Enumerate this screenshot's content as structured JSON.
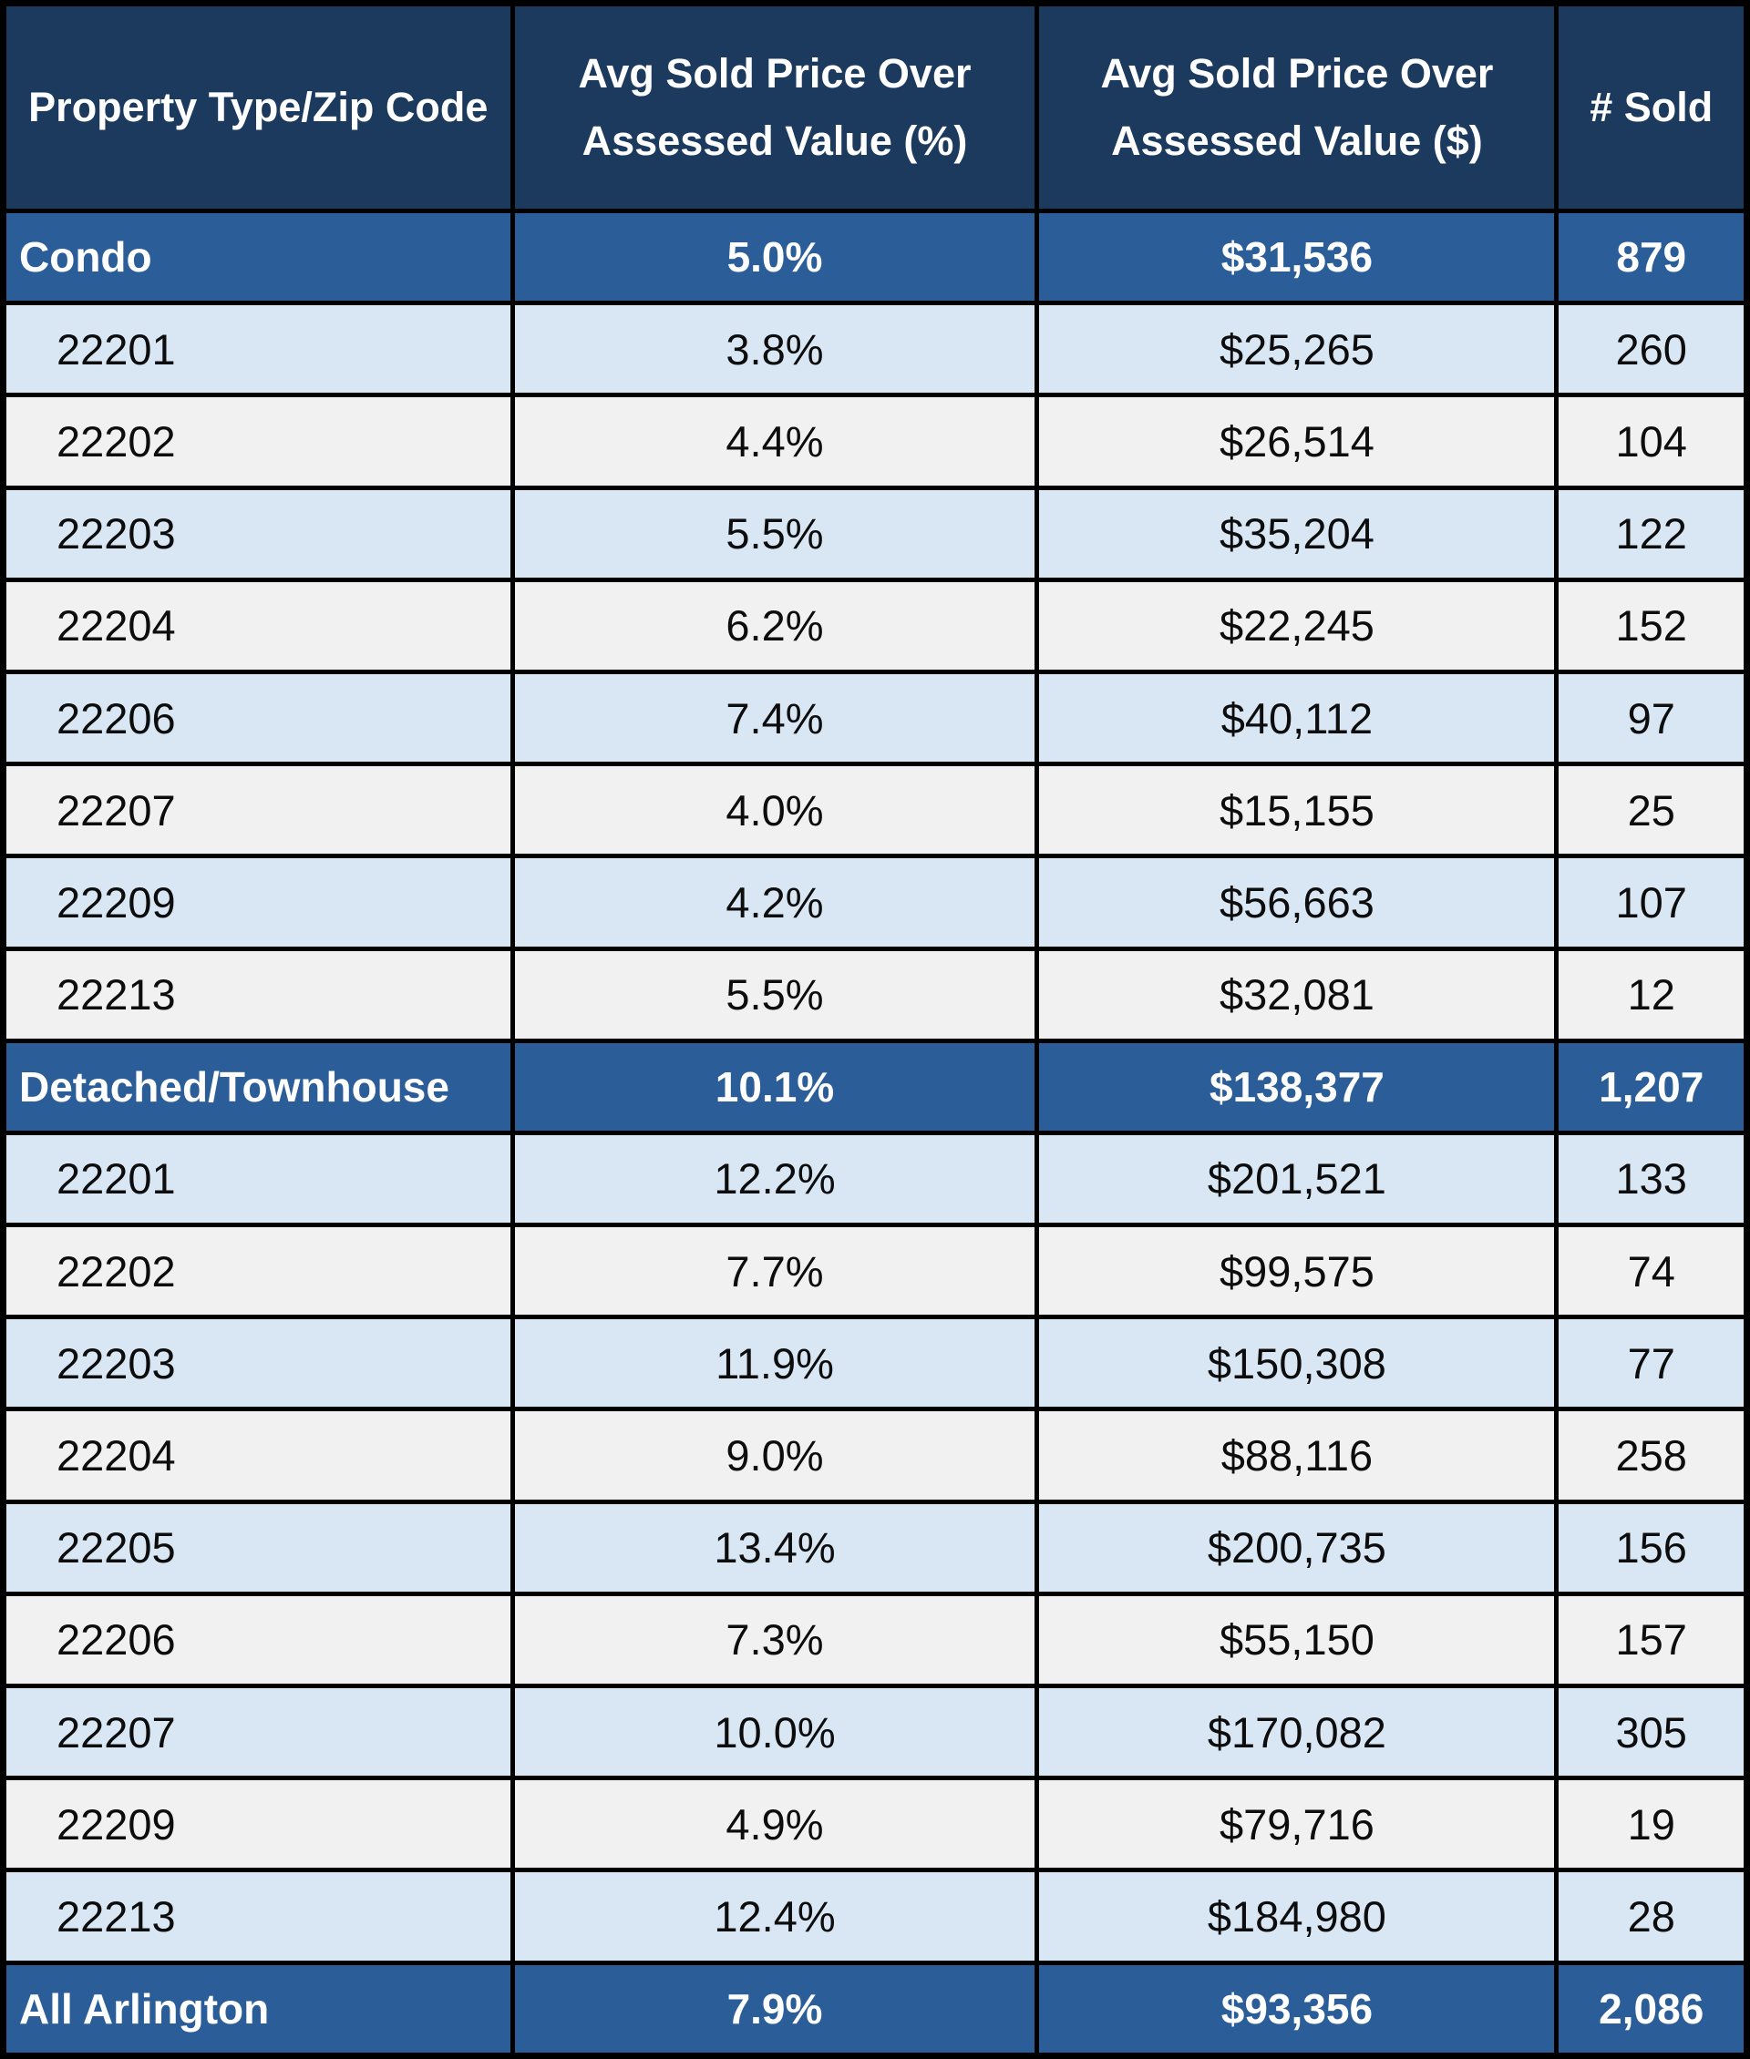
{
  "colors": {
    "header_bg": "#1b3a5e",
    "category_row_bg": "#2b5e99",
    "zip_row_blue": "#d9e7f5",
    "zip_row_gray": "#f1f1f1",
    "border": "#000000",
    "header_text": "#ffffff",
    "body_text": "#0d0d0d"
  },
  "chart_data": {
    "type": "table",
    "columns": [
      "Property Type/Zip Code",
      "Avg Sold Price Over Assessed Value (%)",
      "Avg Sold Price Over Assessed Value ($)",
      "# Sold"
    ],
    "rows": [
      {
        "row_type": "category",
        "label": "Condo",
        "pct": "5.0%",
        "dollar": "$31,536",
        "sold": "879"
      },
      {
        "row_type": "zip",
        "label": "22201",
        "pct": "3.8%",
        "dollar": "$25,265",
        "sold": "260"
      },
      {
        "row_type": "zip",
        "label": "22202",
        "pct": "4.4%",
        "dollar": "$26,514",
        "sold": "104"
      },
      {
        "row_type": "zip",
        "label": "22203",
        "pct": "5.5%",
        "dollar": "$35,204",
        "sold": "122"
      },
      {
        "row_type": "zip",
        "label": "22204",
        "pct": "6.2%",
        "dollar": "$22,245",
        "sold": "152"
      },
      {
        "row_type": "zip",
        "label": "22206",
        "pct": "7.4%",
        "dollar": "$40,112",
        "sold": "97"
      },
      {
        "row_type": "zip",
        "label": "22207",
        "pct": "4.0%",
        "dollar": "$15,155",
        "sold": "25"
      },
      {
        "row_type": "zip",
        "label": "22209",
        "pct": "4.2%",
        "dollar": "$56,663",
        "sold": "107"
      },
      {
        "row_type": "zip",
        "label": "22213",
        "pct": "5.5%",
        "dollar": "$32,081",
        "sold": "12"
      },
      {
        "row_type": "category",
        "label": "Detached/Townhouse",
        "pct": "10.1%",
        "dollar": "$138,377",
        "sold": "1,207"
      },
      {
        "row_type": "zip",
        "label": "22201",
        "pct": "12.2%",
        "dollar": "$201,521",
        "sold": "133"
      },
      {
        "row_type": "zip",
        "label": "22202",
        "pct": "7.7%",
        "dollar": "$99,575",
        "sold": "74"
      },
      {
        "row_type": "zip",
        "label": "22203",
        "pct": "11.9%",
        "dollar": "$150,308",
        "sold": "77"
      },
      {
        "row_type": "zip",
        "label": "22204",
        "pct": "9.0%",
        "dollar": "$88,116",
        "sold": "258"
      },
      {
        "row_type": "zip",
        "label": "22205",
        "pct": "13.4%",
        "dollar": "$200,735",
        "sold": "156"
      },
      {
        "row_type": "zip",
        "label": "22206",
        "pct": "7.3%",
        "dollar": "$55,150",
        "sold": "157"
      },
      {
        "row_type": "zip",
        "label": "22207",
        "pct": "10.0%",
        "dollar": "$170,082",
        "sold": "305"
      },
      {
        "row_type": "zip",
        "label": "22209",
        "pct": "4.9%",
        "dollar": "$79,716",
        "sold": "19"
      },
      {
        "row_type": "zip",
        "label": "22213",
        "pct": "12.4%",
        "dollar": "$184,980",
        "sold": "28"
      },
      {
        "row_type": "total",
        "label": "All Arlington",
        "pct": "7.9%",
        "dollar": "$93,356",
        "sold": "2,086"
      }
    ]
  }
}
